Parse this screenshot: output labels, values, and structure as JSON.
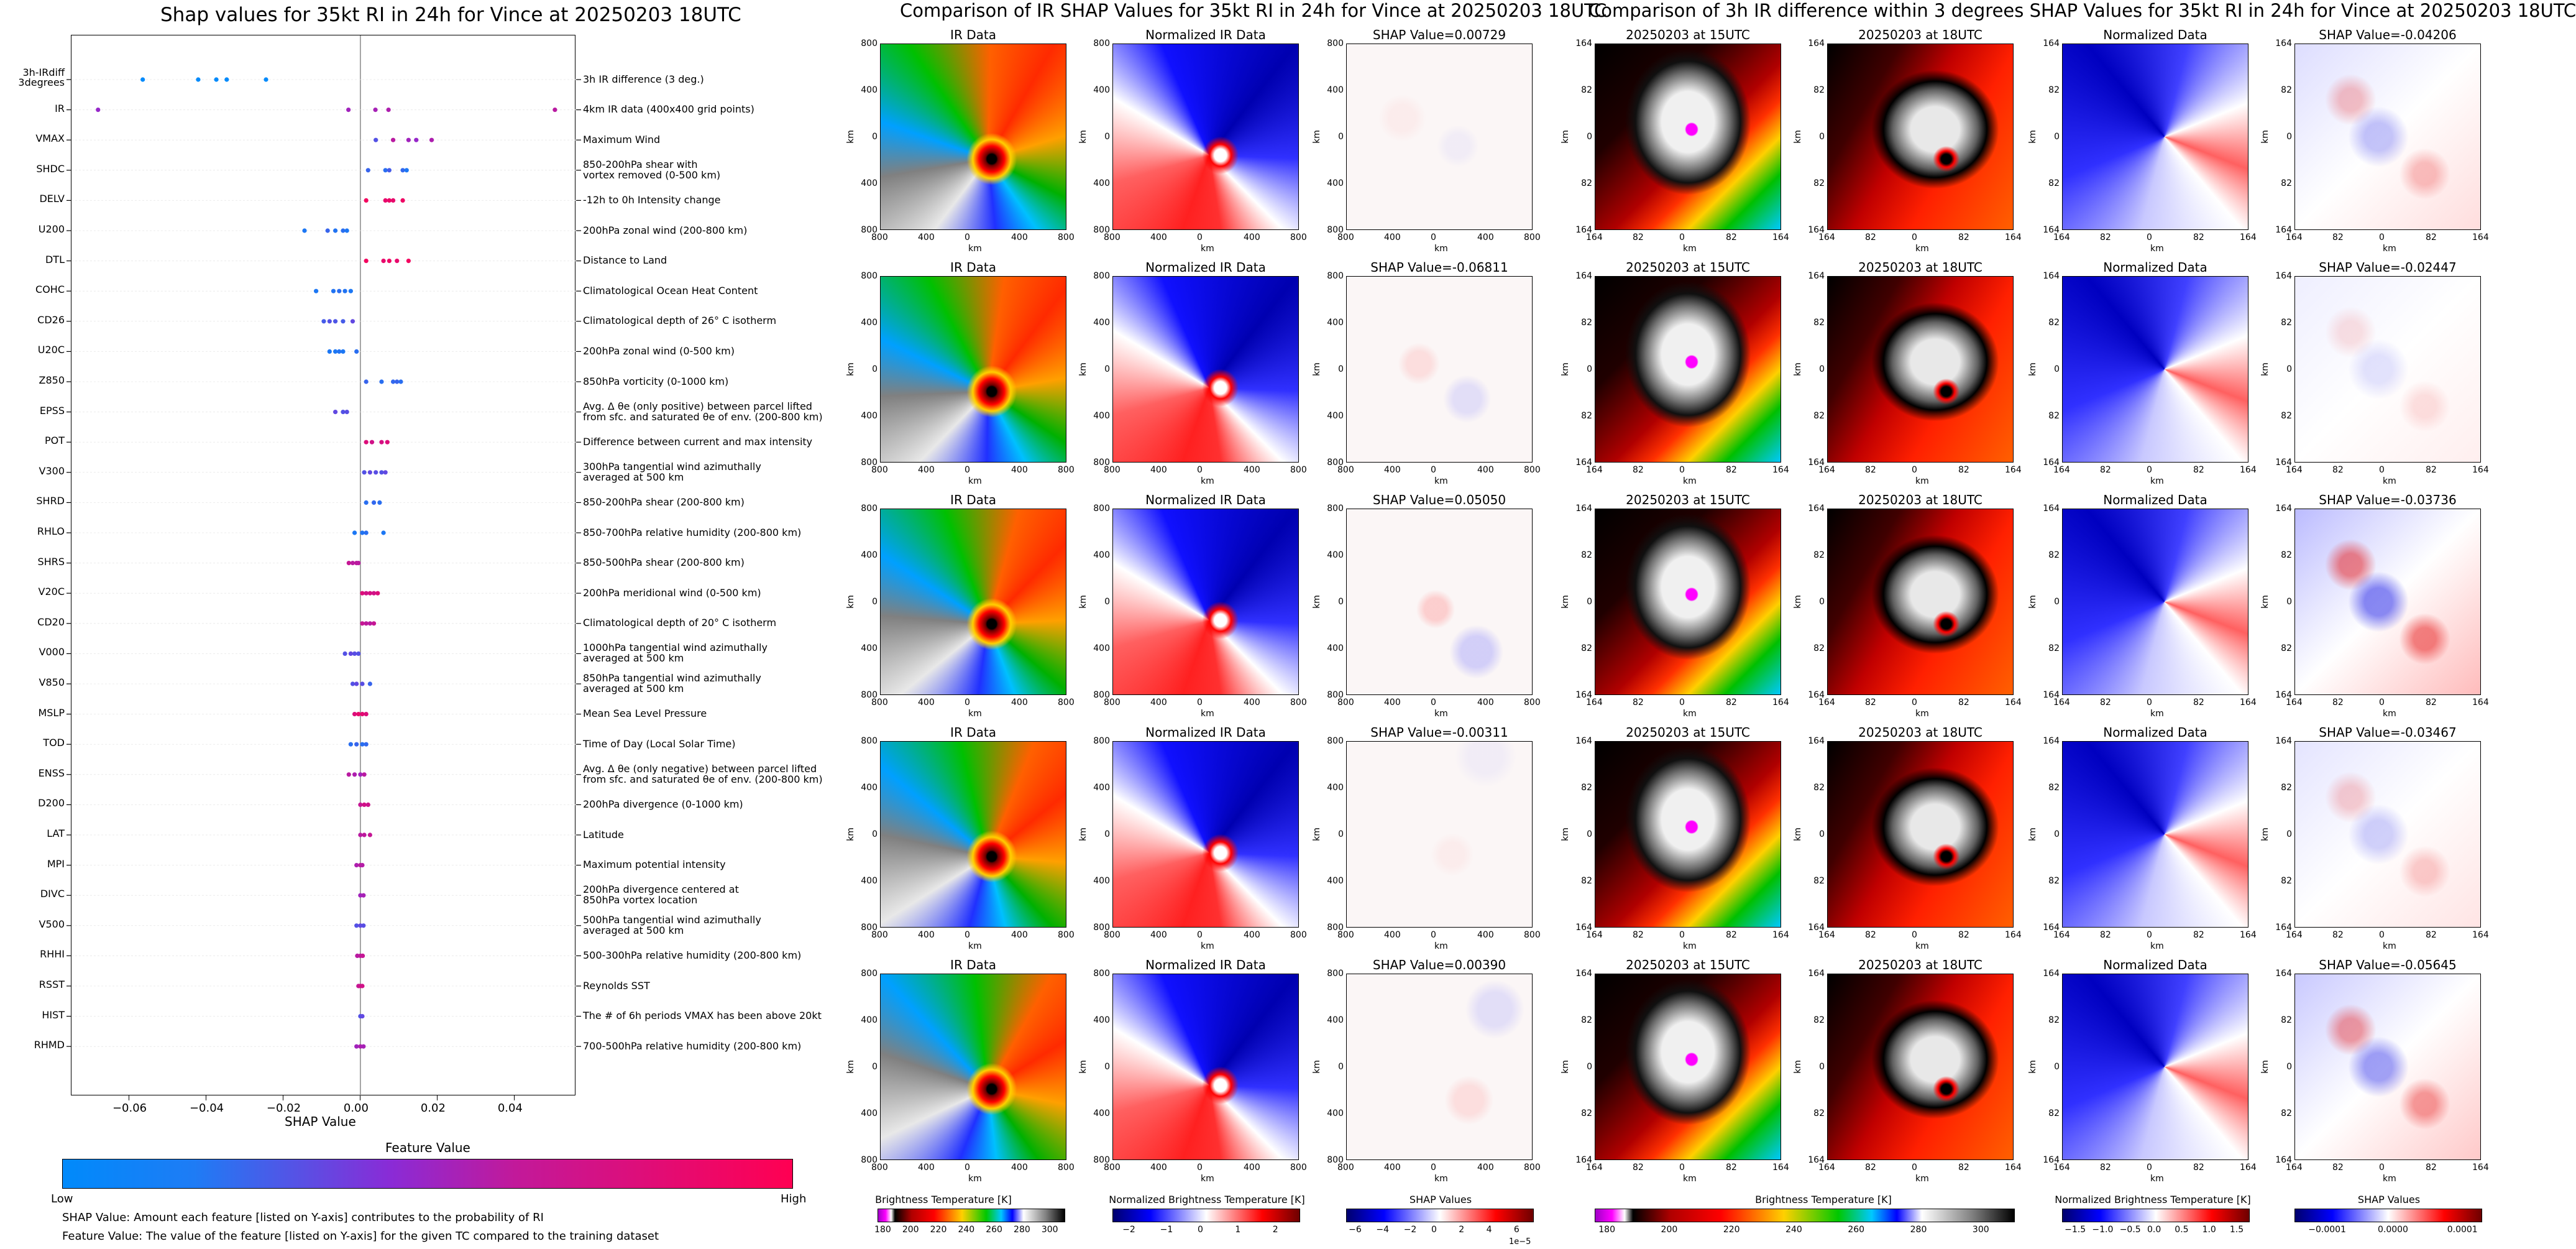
{
  "left": {
    "title": "Shap values for 35kt RI in 24h for Vince at 20250203 18UTC",
    "xlabel": "SHAP Value",
    "colorbar_title": "Feature Value",
    "colorbar_low": "Low",
    "colorbar_high": "High",
    "note1": "SHAP Value: Amount each feature [listed on Y-axis] contributes to the probability of RI",
    "note2": "Feature Value: The value of the feature [listed on Y-axis] for the given TC compared to the training dataset"
  },
  "middle": {
    "title": "Comparison of IR SHAP Values for 35kt RI in 24h for Vince at 20250203 18UTC",
    "col_titles": [
      "IR Data",
      "Normalized IR Data"
    ],
    "shap_titles": [
      "SHAP Value=0.00729",
      "SHAP Value=-0.06811",
      "SHAP Value=0.05050",
      "SHAP Value=-0.00311",
      "SHAP Value=0.00390"
    ],
    "axis_label": "km",
    "y_ticks": [
      "800",
      "400",
      "0",
      "400",
      "800"
    ],
    "x_ticks": [
      "800",
      "400",
      "0",
      "400",
      "800"
    ],
    "cbar_ir_label": "Brightness Temperature [K]",
    "cbar_ir_ticks": [
      "180",
      "200",
      "220",
      "240",
      "260",
      "280",
      "300"
    ],
    "cbar_norm_label": "Normalized Brightness Temperature [K]",
    "cbar_norm_ticks": [
      "−2",
      "−1",
      "0",
      "1",
      "2"
    ],
    "cbar_shap_label": "SHAP Values",
    "cbar_shap_ticks": [
      "−6",
      "−4",
      "−2",
      "0",
      "2",
      "4",
      "6"
    ],
    "cbar_shap_exp": "1e−5"
  },
  "right": {
    "title": "Comparison of 3h IR difference within 3 degrees SHAP Values for 35kt RI in 24h for Vince at 20250203 18UTC",
    "col_titles": [
      "20250203 at 15UTC",
      "20250203 at 18UTC",
      "Normalized Data"
    ],
    "shap_titles": [
      "SHAP Value=-0.04206",
      "SHAP Value=-0.02447",
      "SHAP Value=-0.03736",
      "SHAP Value=-0.03467",
      "SHAP Value=-0.05645"
    ],
    "axis_label": "km",
    "y_ticks": [
      "164",
      "82",
      "0",
      "82",
      "164"
    ],
    "x_ticks": [
      "164",
      "82",
      "0",
      "82",
      "164"
    ],
    "cbar_ir_label": "Brightness Temperature [K]",
    "cbar_ir_ticks": [
      "180",
      "200",
      "220",
      "240",
      "260",
      "280",
      "300"
    ],
    "cbar_norm_label": "Normalized Brightness Temperature [K]",
    "cbar_norm_ticks": [
      "−1.5",
      "−1.0",
      "−0.5",
      "0.0",
      "0.5",
      "1.0",
      "1.5"
    ],
    "cbar_shap_label": "SHAP Values",
    "cbar_shap_ticks": [
      "−0.0001",
      "0.0000",
      "0.0001"
    ]
  },
  "colors": {
    "low": "#008afb",
    "mid": "#8a2bd6",
    "high": "#ff0052",
    "shap_pos": "#e00000",
    "shap_neg": "#1010e0"
  },
  "chart_data": {
    "type": "scatter",
    "title": "Shap values for 35kt RI in 24h for Vince at 20250203 18UTC",
    "xlabel": "SHAP Value",
    "xlim": [
      -0.075,
      0.056
    ],
    "xticks": [
      "−0.06",
      "−0.04",
      "−0.02",
      "0.00",
      "0.02",
      "0.04"
    ],
    "xtick_values": [
      -0.06,
      -0.04,
      -0.02,
      0.0,
      0.02,
      0.04
    ],
    "features": [
      {
        "name": "3h-IRdiff\n3degrees",
        "desc": "3h IR difference (3 deg.)",
        "points": [
          [
            -0.0565,
            0.0
          ],
          [
            -0.0421,
            0.0
          ],
          [
            -0.0374,
            0.0
          ],
          [
            -0.0347,
            0.0
          ],
          [
            -0.0245,
            0.0
          ]
        ]
      },
      {
        "name": "IR",
        "desc": "4km IR data (400x400 grid points)",
        "points": [
          [
            -0.0681,
            0.55
          ],
          [
            -0.0031,
            0.6
          ],
          [
            0.0039,
            0.62
          ],
          [
            0.0073,
            0.65
          ],
          [
            0.0505,
            0.7
          ]
        ]
      },
      {
        "name": "VMAX",
        "desc": "Maximum Wind",
        "points": [
          [
            0.004,
            0.3
          ],
          [
            0.0085,
            0.7
          ],
          [
            0.0125,
            0.6
          ],
          [
            0.0145,
            0.55
          ],
          [
            0.0185,
            0.65
          ]
        ]
      },
      {
        "name": "SHDC",
        "desc": "850-200hPa shear with\nvortex removed (0-500 km)",
        "points": [
          [
            0.002,
            0.2
          ],
          [
            0.0065,
            0.15
          ],
          [
            0.0075,
            0.25
          ],
          [
            0.011,
            0.18
          ],
          [
            0.012,
            0.1
          ]
        ]
      },
      {
        "name": "DELV",
        "desc": "-12h to 0h Intensity change",
        "points": [
          [
            0.0015,
            0.95
          ],
          [
            0.0065,
            0.9
          ],
          [
            0.0075,
            0.92
          ],
          [
            0.0085,
            0.9
          ],
          [
            0.011,
            0.93
          ]
        ]
      },
      {
        "name": "U200",
        "desc": "200hPa zonal wind (200-800 km)",
        "points": [
          [
            -0.0145,
            0.1
          ],
          [
            -0.0085,
            0.2
          ],
          [
            -0.0065,
            0.12
          ],
          [
            -0.0045,
            0.15
          ],
          [
            -0.0035,
            0.1
          ]
        ]
      },
      {
        "name": "DTL",
        "desc": "Distance to Land",
        "points": [
          [
            0.0015,
            0.95
          ],
          [
            0.006,
            0.9
          ],
          [
            0.0075,
            0.93
          ],
          [
            0.0095,
            0.9
          ],
          [
            0.0125,
            0.95
          ]
        ]
      },
      {
        "name": "COHC",
        "desc": "Climatological Ocean Heat Content",
        "points": [
          [
            -0.0115,
            0.1
          ],
          [
            -0.007,
            0.12
          ],
          [
            -0.0055,
            0.15
          ],
          [
            -0.004,
            0.12
          ],
          [
            -0.0025,
            0.1
          ]
        ]
      },
      {
        "name": "CD26",
        "desc": "Climatological depth of 26° C isotherm",
        "points": [
          [
            -0.0095,
            0.25
          ],
          [
            -0.008,
            0.3
          ],
          [
            -0.0065,
            0.28
          ],
          [
            -0.0045,
            0.25
          ],
          [
            -0.002,
            0.35
          ]
        ]
      },
      {
        "name": "U20C",
        "desc": "200hPa zonal wind (0-500 km)",
        "points": [
          [
            -0.008,
            0.1
          ],
          [
            -0.0065,
            0.1
          ],
          [
            -0.0055,
            0.12
          ],
          [
            -0.0045,
            0.1
          ],
          [
            -0.001,
            0.15
          ]
        ]
      },
      {
        "name": "Z850",
        "desc": "850hPa vorticity (0-1000 km)",
        "points": [
          [
            0.0015,
            0.2
          ],
          [
            0.0055,
            0.15
          ],
          [
            0.0085,
            0.18
          ],
          [
            0.0095,
            0.2
          ],
          [
            0.0105,
            0.15
          ]
        ]
      },
      {
        "name": "EPSS",
        "desc": "Avg. Δ θe (only positive) between parcel lifted\nfrom sfc. and saturated θe of env. (200-800 km)",
        "points": [
          [
            -0.0065,
            0.35
          ],
          [
            -0.0045,
            0.3
          ],
          [
            -0.0035,
            0.32
          ]
        ]
      },
      {
        "name": "POT",
        "desc": "Difference between current and max intensity",
        "points": [
          [
            0.0015,
            0.85
          ],
          [
            0.003,
            0.8
          ],
          [
            0.0055,
            0.82
          ],
          [
            0.007,
            0.85
          ]
        ]
      },
      {
        "name": "V300",
        "desc": "300hPa tangential wind azimuthally\naveraged at 500 km",
        "points": [
          [
            0.001,
            0.3
          ],
          [
            0.0025,
            0.35
          ],
          [
            0.004,
            0.32
          ],
          [
            0.0055,
            0.3
          ],
          [
            0.0065,
            0.35
          ]
        ]
      },
      {
        "name": "SHRD",
        "desc": "850-200hPa shear (200-800 km)",
        "points": [
          [
            0.0015,
            0.15
          ],
          [
            0.0035,
            0.18
          ],
          [
            0.005,
            0.15
          ]
        ]
      },
      {
        "name": "RHLO",
        "desc": "850-700hPa relative humidity (200-800 km)",
        "points": [
          [
            -0.0015,
            0.1
          ],
          [
            0.0005,
            0.12
          ],
          [
            0.0015,
            0.15
          ],
          [
            0.006,
            0.1
          ]
        ]
      },
      {
        "name": "SHRS",
        "desc": "850-500hPa shear (200-800 km)",
        "points": [
          [
            -0.003,
            0.75
          ],
          [
            -0.002,
            0.7
          ],
          [
            -0.001,
            0.72
          ],
          [
            -0.0005,
            0.7
          ]
        ]
      },
      {
        "name": "V20C",
        "desc": "200hPa meridional wind (0-500 km)",
        "points": [
          [
            0.0005,
            0.85
          ],
          [
            0.0015,
            0.8
          ],
          [
            0.0025,
            0.82
          ],
          [
            0.0035,
            0.8
          ],
          [
            0.0045,
            0.85
          ]
        ]
      },
      {
        "name": "CD20",
        "desc": "Climatological depth of 20° C isotherm",
        "points": [
          [
            0.0005,
            0.75
          ],
          [
            0.0015,
            0.72
          ],
          [
            0.0025,
            0.7
          ],
          [
            0.0035,
            0.75
          ]
        ]
      },
      {
        "name": "V000",
        "desc": "1000hPa tangential wind azimuthally\naveraged at 500 km",
        "points": [
          [
            -0.004,
            0.3
          ],
          [
            -0.0025,
            0.35
          ],
          [
            -0.0015,
            0.32
          ],
          [
            -0.0005,
            0.3
          ]
        ]
      },
      {
        "name": "V850",
        "desc": "850hPa tangential wind azimuthally\naveraged at 500 km",
        "points": [
          [
            -0.002,
            0.3
          ],
          [
            -0.001,
            0.35
          ],
          [
            0.0005,
            0.32
          ],
          [
            0.0025,
            0.2
          ]
        ]
      },
      {
        "name": "MSLP",
        "desc": "Mean Sea Level Pressure",
        "points": [
          [
            -0.0015,
            0.85
          ],
          [
            -0.0005,
            0.9
          ],
          [
            0.0005,
            0.88
          ],
          [
            0.0015,
            0.85
          ]
        ]
      },
      {
        "name": "TOD",
        "desc": "Time of Day (Local Solar Time)",
        "points": [
          [
            -0.0025,
            0.15
          ],
          [
            -0.001,
            0.2
          ],
          [
            0.0005,
            0.15
          ],
          [
            0.0015,
            0.18
          ]
        ]
      },
      {
        "name": "ENSS",
        "desc": "Avg. Δ θe (only negative) between parcel lifted\nfrom sfc. and saturated θe of env. (200-800 km)",
        "points": [
          [
            -0.003,
            0.7
          ],
          [
            -0.0015,
            0.65
          ],
          [
            0.0,
            0.6
          ],
          [
            0.001,
            0.7
          ]
        ]
      },
      {
        "name": "D200",
        "desc": "200hPa divergence (0-1000 km)",
        "points": [
          [
            0.0,
            0.75
          ],
          [
            0.001,
            0.8
          ],
          [
            0.002,
            0.78
          ]
        ]
      },
      {
        "name": "LAT",
        "desc": "Latitude",
        "points": [
          [
            0.0,
            0.7
          ],
          [
            0.001,
            0.72
          ],
          [
            0.0025,
            0.75
          ]
        ]
      },
      {
        "name": "MPI",
        "desc": "Maximum potential intensity",
        "points": [
          [
            -0.001,
            0.65
          ],
          [
            0.0,
            0.7
          ],
          [
            0.0005,
            0.68
          ]
        ]
      },
      {
        "name": "DIVC",
        "desc": "200hPa divergence centered at\n850hPa vortex location",
        "points": [
          [
            0.0,
            0.6
          ],
          [
            0.0008,
            0.62
          ]
        ]
      },
      {
        "name": "V500",
        "desc": "500hPa tangential wind azimuthally\naveraged at 500 km",
        "points": [
          [
            -0.001,
            0.3
          ],
          [
            0.0,
            0.35
          ],
          [
            0.0008,
            0.32
          ]
        ]
      },
      {
        "name": "RHHI",
        "desc": "500-300hPa relative humidity (200-800 km)",
        "points": [
          [
            -0.0008,
            0.7
          ],
          [
            0.0,
            0.72
          ],
          [
            0.0006,
            0.75
          ]
        ]
      },
      {
        "name": "RSST",
        "desc": "Reynolds SST",
        "points": [
          [
            -0.0005,
            0.75
          ],
          [
            0.0,
            0.78
          ],
          [
            0.0005,
            0.8
          ]
        ]
      },
      {
        "name": "HIST",
        "desc": "The # of 6h periods VMAX has been above 20kt",
        "points": [
          [
            0.0,
            0.3
          ],
          [
            0.0005,
            0.35
          ]
        ]
      },
      {
        "name": "RHMD",
        "desc": "700-500hPa relative humidity (200-800 km)",
        "points": [
          [
            -0.001,
            0.6
          ],
          [
            0.0,
            0.65
          ],
          [
            0.0008,
            0.62
          ]
        ]
      }
    ]
  }
}
